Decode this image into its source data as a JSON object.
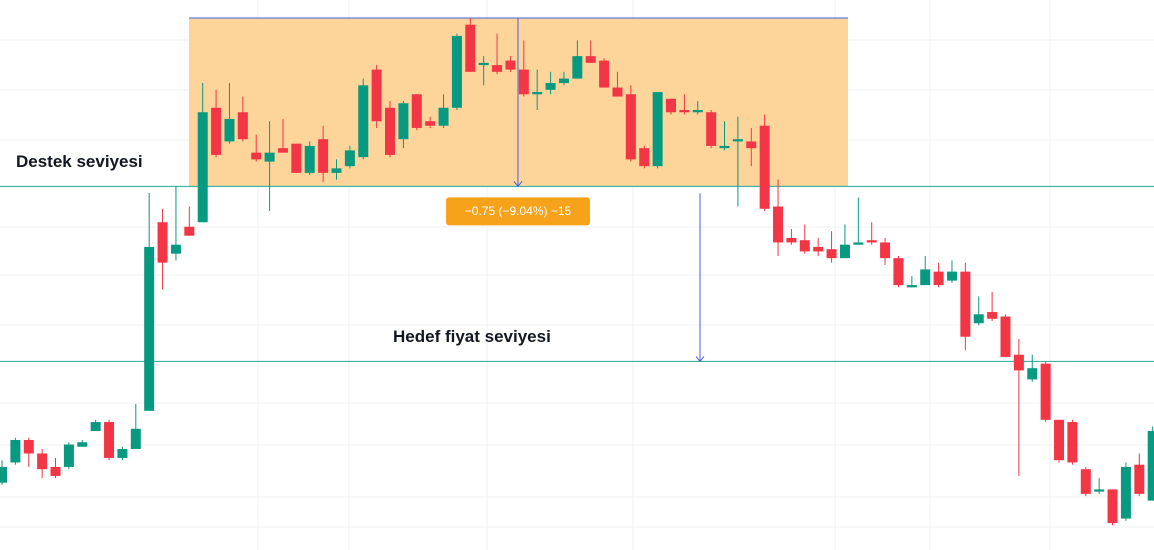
{
  "chart_data": {
    "type": "candlestick",
    "up_color": "#089981",
    "down_color": "#f23645",
    "grid": true,
    "ylim": [
      5.93,
      8.38
    ],
    "open": [
      6.23,
      6.32,
      6.42,
      6.36,
      6.3,
      6.3,
      6.39,
      6.46,
      6.5,
      6.34,
      6.38,
      6.55,
      7.39,
      7.25,
      7.37,
      7.39,
      7.9,
      7.75,
      7.88,
      7.7,
      7.66,
      7.72,
      7.74,
      7.61,
      7.76,
      7.61,
      7.64,
      7.68,
      8.07,
      7.9,
      7.76,
      7.96,
      7.84,
      7.82,
      7.9,
      8.27,
      8.09,
      8.09,
      8.11,
      8.07,
      7.96,
      7.98,
      8.01,
      8.03,
      8.13,
      8.11,
      7.99,
      7.96,
      7.72,
      7.64,
      7.94,
      7.89,
      7.88,
      7.88,
      7.72,
      7.75,
      7.75,
      7.82,
      7.46,
      7.32,
      7.31,
      7.28,
      7.27,
      7.23,
      7.29,
      7.31,
      7.3,
      7.23,
      7.1,
      7.11,
      7.17,
      7.13,
      7.17,
      6.94,
      6.99,
      6.97,
      6.8,
      6.69,
      6.76,
      6.51,
      6.5,
      6.29,
      6.19,
      6.2,
      6.07,
      6.31,
      6.15
    ],
    "high": [
      6.33,
      6.43,
      6.43,
      6.38,
      6.34,
      6.41,
      6.42,
      6.51,
      6.51,
      6.39,
      6.58,
      7.52,
      7.45,
      7.55,
      7.46,
      8.01,
      7.98,
      8.01,
      7.95,
      7.78,
      7.84,
      7.85,
      7.74,
      7.75,
      7.82,
      7.67,
      7.73,
      8.03,
      8.09,
      7.93,
      7.93,
      7.96,
      7.86,
      7.96,
      8.23,
      8.3,
      8.13,
      8.23,
      8.13,
      8.2,
      8.07,
      8.06,
      8.06,
      8.2,
      8.2,
      8.12,
      8.06,
      8.0,
      7.73,
      7.97,
      7.94,
      7.96,
      7.93,
      7.89,
      7.84,
      7.86,
      7.81,
      7.87,
      7.58,
      7.36,
      7.38,
      7.32,
      7.35,
      7.38,
      7.5,
      7.39,
      7.32,
      7.24,
      7.15,
      7.24,
      7.21,
      7.22,
      7.21,
      7.06,
      7.08,
      6.98,
      6.87,
      6.8,
      6.77,
      6.51,
      6.51,
      6.3,
      6.25,
      6.2,
      6.32,
      6.36,
      6.48
    ],
    "low": [
      6.22,
      6.31,
      6.3,
      6.25,
      6.25,
      6.29,
      6.39,
      6.46,
      6.33,
      6.33,
      6.38,
      6.55,
      7.09,
      7.22,
      7.33,
      7.39,
      7.68,
      7.74,
      7.75,
      7.66,
      7.44,
      7.7,
      7.61,
      7.6,
      7.57,
      7.58,
      7.63,
      7.67,
      7.81,
      7.68,
      7.72,
      7.8,
      7.81,
      7.81,
      7.89,
      8.06,
      8.0,
      8.05,
      8.06,
      7.95,
      7.89,
      7.96,
      8.0,
      8.03,
      8.1,
      7.99,
      7.95,
      7.66,
      7.63,
      7.63,
      7.87,
      7.87,
      7.87,
      7.72,
      7.71,
      7.46,
      7.64,
      7.44,
      7.24,
      7.29,
      7.25,
      7.24,
      7.21,
      7.23,
      7.29,
      7.29,
      7.2,
      7.1,
      7.1,
      7.11,
      7.1,
      7.12,
      6.82,
      6.93,
      6.95,
      6.79,
      6.26,
      6.68,
      6.5,
      6.32,
      6.31,
      6.17,
      6.18,
      6.04,
      6.06,
      6.17,
      6.15
    ],
    "close": [
      6.3,
      6.42,
      6.36,
      6.29,
      6.26,
      6.4,
      6.41,
      6.5,
      6.34,
      6.38,
      6.47,
      7.28,
      7.21,
      7.29,
      7.33,
      7.88,
      7.69,
      7.85,
      7.76,
      7.67,
      7.7,
      7.7,
      7.61,
      7.73,
      7.61,
      7.63,
      7.71,
      8.0,
      7.84,
      7.69,
      7.92,
      7.81,
      7.82,
      7.9,
      8.22,
      8.06,
      8.1,
      8.06,
      8.07,
      7.96,
      7.97,
      8.01,
      8.03,
      8.13,
      8.1,
      7.99,
      7.95,
      7.67,
      7.64,
      7.97,
      7.88,
      7.88,
      7.89,
      7.73,
      7.73,
      7.76,
      7.72,
      7.45,
      7.3,
      7.3,
      7.26,
      7.26,
      7.23,
      7.29,
      7.3,
      7.3,
      7.23,
      7.11,
      7.11,
      7.18,
      7.11,
      7.17,
      6.88,
      6.98,
      6.96,
      6.79,
      6.73,
      6.74,
      6.51,
      6.33,
      6.32,
      6.18,
      6.2,
      6.05,
      6.3,
      6.18,
      6.46
    ],
    "levels": [
      {
        "label": "Destek seviyesi",
        "value": 7.55,
        "color": "#26a69a"
      },
      {
        "label": "Hedef fiyat seviyesi",
        "value": 6.77,
        "color": "#26a69a"
      }
    ],
    "measure": {
      "top": 8.3,
      "bottom": 7.55,
      "label": "−0.75 (−9.04%) −15",
      "fill": "#fdd49a",
      "line_color": "#4a5fe0",
      "label_color": "#f7a21b"
    }
  }
}
